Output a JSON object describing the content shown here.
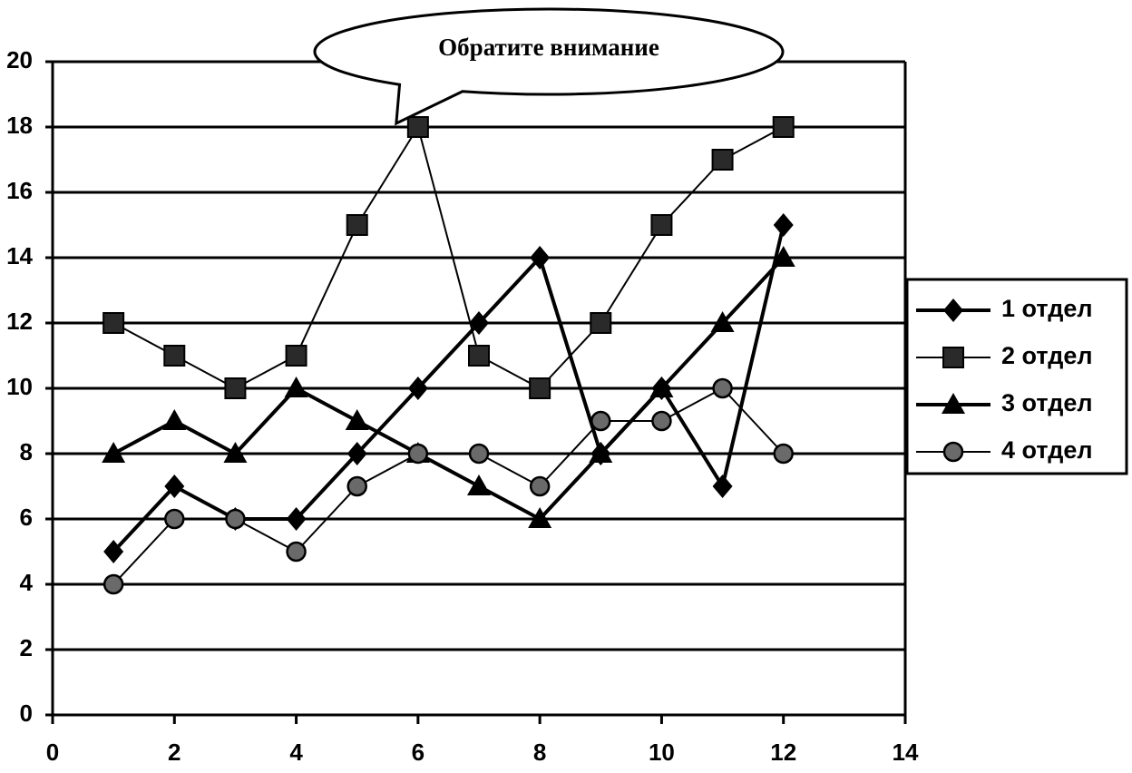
{
  "chart_data": {
    "type": "line",
    "title": "",
    "xlabel": "",
    "ylabel": "",
    "xlim": [
      0,
      14
    ],
    "ylim": [
      0,
      20
    ],
    "x_ticks": [
      0,
      2,
      4,
      6,
      8,
      10,
      12,
      14
    ],
    "y_ticks": [
      0,
      2,
      4,
      6,
      8,
      10,
      12,
      14,
      16,
      18,
      20
    ],
    "grid": "horizontal",
    "legend_position": "right",
    "x": [
      1,
      2,
      3,
      4,
      5,
      6,
      7,
      8,
      9,
      10,
      11,
      12
    ],
    "series": [
      {
        "name": "1 отдел",
        "marker": "diamond",
        "line": "thick",
        "values": [
          5,
          7,
          6,
          6,
          8,
          10,
          12,
          14,
          8,
          10,
          7,
          15
        ]
      },
      {
        "name": "2 отдел",
        "marker": "square",
        "line": "thin",
        "values": [
          12,
          11,
          10,
          11,
          15,
          18,
          11,
          10,
          12,
          15,
          17,
          18
        ]
      },
      {
        "name": "3 отдел",
        "marker": "triangle",
        "line": "thick",
        "values": [
          8,
          9,
          8,
          10,
          9,
          8,
          7,
          6,
          8,
          10,
          12,
          14
        ]
      },
      {
        "name": "4 отдел",
        "marker": "circle",
        "line": "thin",
        "values": [
          4,
          6,
          6,
          5,
          7,
          8,
          8,
          7,
          9,
          9,
          10,
          8
        ]
      }
    ],
    "annotations": [
      {
        "text": "Обратите внимание",
        "points_to": {
          "series": "2 отдел",
          "x": 6,
          "y": 18
        }
      }
    ]
  }
}
